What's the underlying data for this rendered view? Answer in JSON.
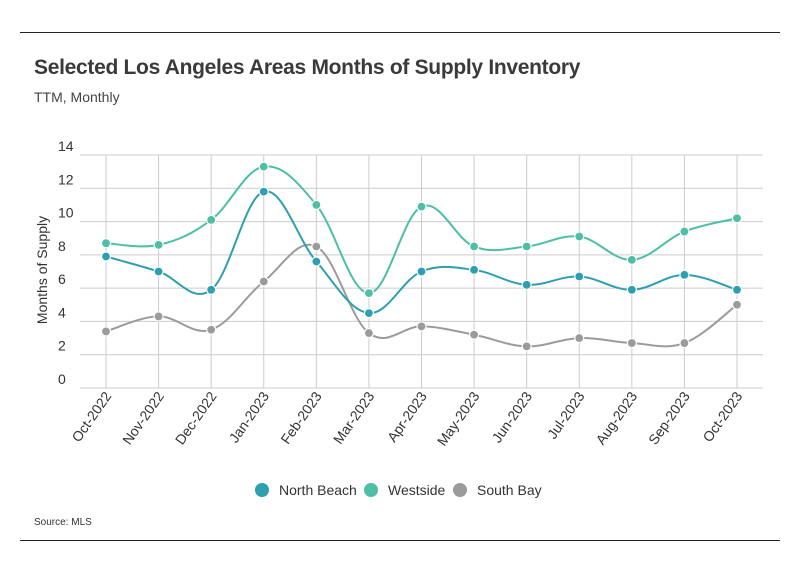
{
  "header": {
    "title": "Selected Los Angeles Areas Months of Supply Inventory",
    "subtitle": "TTM, Monthly"
  },
  "footer": {
    "source": "Source: MLS"
  },
  "chart_data": {
    "type": "line",
    "ylabel": "Months of Supply",
    "xlabel": "",
    "ylim": [
      0,
      14
    ],
    "yticks": [
      0,
      2,
      4,
      6,
      8,
      10,
      12,
      14
    ],
    "grid": true,
    "legend_position": "bottom",
    "categories": [
      "Oct-2022",
      "Nov-2022",
      "Dec-2022",
      "Jan-2023",
      "Feb-2023",
      "Mar-2023",
      "Apr-2023",
      "May-2023",
      "Jun-2023",
      "Jul-2023",
      "Aug-2023",
      "Sep-2023",
      "Oct-2023"
    ],
    "series": [
      {
        "name": "North Beach",
        "color": "#2e9fb0",
        "values": [
          7.9,
          7.0,
          5.9,
          11.8,
          7.6,
          4.5,
          7.0,
          7.1,
          6.2,
          6.7,
          5.9,
          6.8,
          5.9
        ]
      },
      {
        "name": "Westside",
        "color": "#4cbfa6",
        "values": [
          8.7,
          8.6,
          10.1,
          13.3,
          11.0,
          5.7,
          10.9,
          8.5,
          8.5,
          9.1,
          7.7,
          9.4,
          10.2
        ]
      },
      {
        "name": "South Bay",
        "color": "#9b9b9b",
        "values": [
          3.4,
          4.3,
          3.5,
          6.4,
          8.5,
          3.3,
          3.7,
          3.2,
          2.5,
          3.0,
          2.7,
          2.7,
          5.0
        ]
      }
    ]
  }
}
